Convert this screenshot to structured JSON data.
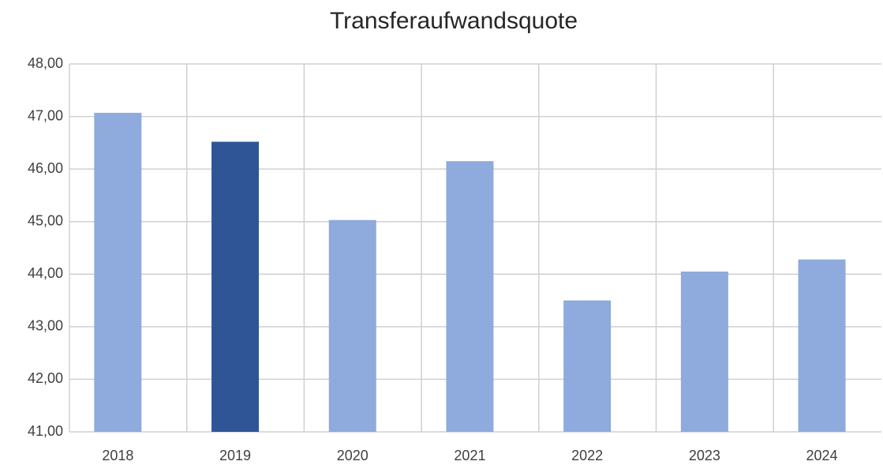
{
  "chart_data": {
    "type": "bar",
    "title": "Transferaufwandsquote",
    "categories": [
      "2018",
      "2019",
      "2020",
      "2021",
      "2022",
      "2023",
      "2024"
    ],
    "values": [
      47.07,
      46.52,
      45.03,
      46.15,
      43.5,
      44.05,
      44.28
    ],
    "colors": [
      "#8faadc",
      "#2f5597",
      "#8faadc",
      "#8faadc",
      "#8faadc",
      "#8faadc",
      "#8faadc"
    ],
    "ylim": [
      41,
      48
    ],
    "yticks": [
      {
        "value": 41,
        "label": "41,00"
      },
      {
        "value": 42,
        "label": "42,00"
      },
      {
        "value": 43,
        "label": "43,00"
      },
      {
        "value": 44,
        "label": "44,00"
      },
      {
        "value": 45,
        "label": "45,00"
      },
      {
        "value": 46,
        "label": "46,00"
      },
      {
        "value": 47,
        "label": "47,00"
      },
      {
        "value": 48,
        "label": "48,00"
      }
    ],
    "grid": true
  }
}
